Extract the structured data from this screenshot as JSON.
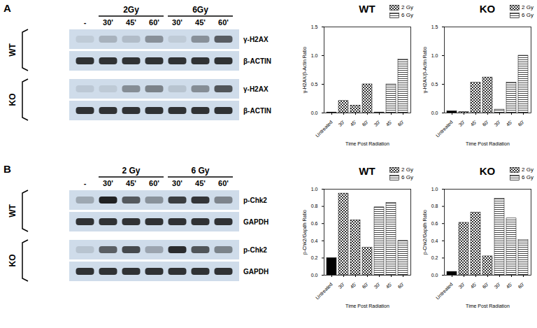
{
  "blots": [
    {
      "panel": "A",
      "doses": [
        "2Gy",
        "6Gy"
      ],
      "lanes": [
        "-",
        "30'",
        "45'",
        "60'",
        "30'",
        "45'",
        "60'"
      ],
      "groups": [
        {
          "name": "WT",
          "bands": [
            "γ-H2AX",
            "β-ACTIN"
          ]
        },
        {
          "name": "KO",
          "bands": [
            "γ-H2AX",
            "β-ACTIN"
          ]
        }
      ]
    },
    {
      "panel": "B",
      "doses": [
        "2 Gy",
        "6 Gy"
      ],
      "lanes": [
        "-",
        "30'",
        "45'",
        "60'",
        "30'",
        "45'",
        "60'"
      ],
      "groups": [
        {
          "name": "WT",
          "bands": [
            "p-Chk2",
            "GAPDH"
          ]
        },
        {
          "name": "KO",
          "bands": [
            "p-Chk2",
            "GAPDH"
          ]
        }
      ]
    }
  ],
  "chart_data": [
    {
      "type": "bar",
      "title": "WT",
      "x_label": "Time Post Radiation",
      "y_label": "γ-H2AX/β-Actin Ratio",
      "categories": [
        "Untreated",
        "30'",
        "45'",
        "60'",
        "30'",
        "45'",
        "60'"
      ],
      "series": [
        {
          "name": null,
          "color": "#000000",
          "values": [
            0.01,
            null,
            null,
            null,
            null,
            null,
            null
          ]
        },
        {
          "name": "2 Gy",
          "color": "#333333",
          "marker": "checkered",
          "values": [
            null,
            0.21,
            0.13,
            0.5,
            null,
            null,
            null
          ]
        },
        {
          "name": "6 Gy",
          "color": "#333333",
          "marker": "striped",
          "values": [
            null,
            null,
            null,
            null,
            0.01,
            0.5,
            0.93
          ]
        }
      ],
      "ylim": [
        0,
        1.5
      ],
      "yticks": [
        {
          "value": 0,
          "label": "0.0"
        },
        0.5,
        {
          "value": 1,
          "label": "1.0"
        },
        1.5
      ],
      "legend": "upper right",
      "grid": false
    },
    {
      "type": "bar",
      "title": "KO",
      "x_label": "Time Post Radiation",
      "y_label": "γ-H2AX/β-Actin Ratio",
      "categories": [
        "Untreated",
        "30'",
        "45'",
        "60'",
        "30'",
        "45'",
        "60'"
      ],
      "series": [
        {
          "name": null,
          "color": "#000000",
          "values": [
            0.03,
            null,
            null,
            null,
            null,
            null,
            null
          ]
        },
        {
          "name": "2 Gy",
          "color": "#333333",
          "marker": "checkered",
          "values": [
            null,
            0.02,
            0.53,
            0.62,
            null,
            null,
            null
          ]
        },
        {
          "name": "6 Gy",
          "color": "#333333",
          "marker": "striped",
          "values": [
            null,
            null,
            null,
            null,
            0.06,
            0.53,
            1.0
          ]
        }
      ],
      "ylim": [
        0,
        1.5
      ],
      "yticks": [
        {
          "value": 0,
          "label": "0.0"
        },
        0.5,
        {
          "value": 1,
          "label": "1.0"
        },
        1.5
      ],
      "legend": "upper right",
      "grid": false
    },
    {
      "type": "bar",
      "title": "WT",
      "x_label": "Time Post Radiation",
      "y_label": "p-Chk2/Gapdh Ratio",
      "categories": [
        "Untreated",
        "30'",
        "45'",
        "60'",
        "30'",
        "45'",
        "60'"
      ],
      "series": [
        {
          "name": null,
          "color": "#000000",
          "values": [
            0.2,
            null,
            null,
            null,
            null,
            null,
            null
          ]
        },
        {
          "name": "2 Gy",
          "color": "#333333",
          "marker": "checkered",
          "values": [
            null,
            0.95,
            0.64,
            0.32,
            null,
            null,
            null
          ]
        },
        {
          "name": "6 Gy",
          "color": "#333333",
          "marker": "striped",
          "values": [
            null,
            null,
            null,
            null,
            0.79,
            0.84,
            0.4
          ]
        }
      ],
      "ylim": [
        0,
        1.0
      ],
      "yticks": [
        {
          "value": 0,
          "label": "0.0"
        },
        0.2,
        0.4,
        0.6,
        0.8,
        {
          "value": 1,
          "label": "1.0"
        }
      ],
      "legend": "upper right",
      "grid": false
    },
    {
      "type": "bar",
      "title": "KO",
      "x_label": "Time Post Radiation",
      "y_label": "p-Chk2/Gapdh Ratio",
      "categories": [
        "Untreated",
        "30'",
        "45'",
        "60'",
        "30'",
        "45'",
        "60'"
      ],
      "series": [
        {
          "name": null,
          "color": "#000000",
          "values": [
            0.04,
            null,
            null,
            null,
            null,
            null,
            null
          ]
        },
        {
          "name": "2 Gy",
          "color": "#333333",
          "marker": "checkered",
          "values": [
            null,
            0.61,
            0.73,
            0.22,
            null,
            null,
            null
          ]
        },
        {
          "name": "6 Gy",
          "color": "#333333",
          "marker": "striped",
          "values": [
            null,
            null,
            null,
            null,
            0.89,
            0.66,
            0.41
          ]
        }
      ],
      "ylim": [
        0,
        1.0
      ],
      "yticks": [
        {
          "value": 0,
          "label": "0.0"
        },
        0.2,
        0.4,
        0.6,
        0.8,
        {
          "value": 1,
          "label": "1.0"
        }
      ],
      "legend": "upper right",
      "grid": false
    }
  ]
}
